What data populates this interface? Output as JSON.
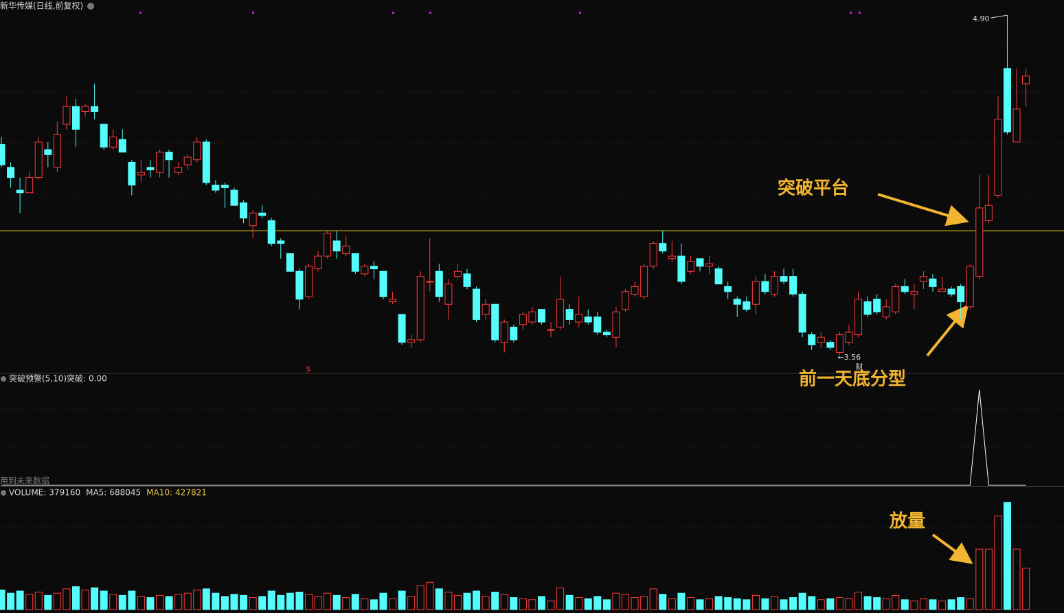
{
  "chart_data": [
    {
      "type": "candlestick",
      "title": "新华传媒(日线,前复权)",
      "ylim": [
        3.49,
        4.96
      ],
      "open": [
        4.39,
        4.3,
        4.21,
        4.2,
        4.26,
        4.37,
        4.3,
        4.47,
        4.54,
        4.52,
        4.54,
        4.47,
        4.38,
        4.41,
        4.32,
        4.27,
        4.3,
        4.28,
        4.36,
        4.28,
        4.31,
        4.33,
        4.4,
        4.23,
        4.23,
        4.21,
        4.16,
        4.07,
        4.12,
        4.09,
        4.01,
        3.96,
        3.89,
        3.79,
        3.9,
        3.95,
        4.01,
        3.96,
        3.96,
        3.88,
        3.91,
        3.89,
        3.77,
        3.72,
        3.61,
        3.62,
        3.85,
        3.89,
        3.76,
        3.87,
        3.88,
        3.82,
        3.72,
        3.76,
        3.61,
        3.67,
        3.68,
        3.69,
        3.74,
        3.66,
        3.67,
        3.74,
        3.69,
        3.71,
        3.71,
        3.65,
        3.63,
        3.74,
        3.8,
        3.79,
        3.91,
        4.0,
        3.94,
        3.95,
        3.89,
        3.94,
        3.91,
        3.9,
        3.83,
        3.78,
        3.77,
        3.76,
        3.85,
        3.8,
        3.87,
        3.87,
        3.8,
        3.64,
        3.61,
        3.61,
        3.57,
        3.61,
        3.64,
        3.77,
        3.78,
        3.71,
        3.73,
        3.83,
        3.8,
        3.85,
        3.86,
        3.81,
        3.82,
        3.83,
        3.75,
        3.87,
        4.09,
        4.19,
        4.69,
        4.4,
        4.63
      ],
      "high": [
        4.42,
        4.32,
        4.26,
        4.28,
        4.42,
        4.4,
        4.48,
        4.58,
        4.57,
        4.55,
        4.63,
        4.47,
        4.45,
        4.45,
        4.33,
        4.33,
        4.33,
        4.37,
        4.37,
        4.32,
        4.35,
        4.42,
        4.41,
        4.25,
        4.24,
        4.22,
        4.17,
        4.13,
        4.15,
        4.1,
        4.02,
        3.96,
        3.9,
        3.92,
        3.97,
        4.05,
        4.05,
        4.03,
        3.96,
        3.92,
        3.93,
        3.89,
        3.81,
        3.72,
        3.64,
        3.89,
        4.02,
        3.92,
        3.86,
        3.92,
        3.9,
        3.83,
        3.78,
        3.76,
        3.7,
        3.68,
        3.73,
        3.75,
        3.74,
        3.69,
        3.87,
        3.76,
        3.79,
        3.74,
        3.73,
        3.66,
        3.75,
        3.82,
        3.85,
        3.92,
        4.01,
        4.05,
        4.01,
        4.0,
        3.95,
        3.94,
        3.95,
        3.91,
        3.85,
        3.79,
        3.79,
        3.87,
        3.88,
        3.89,
        3.9,
        3.9,
        3.81,
        3.65,
        3.65,
        3.62,
        3.65,
        3.68,
        3.81,
        3.79,
        3.8,
        3.78,
        3.84,
        3.86,
        3.84,
        3.89,
        3.88,
        3.87,
        3.83,
        3.84,
        3.92,
        4.27,
        4.27,
        4.58,
        4.9,
        4.69,
        4.69
      ],
      "low": [
        4.3,
        4.22,
        4.12,
        4.2,
        4.25,
        4.3,
        4.28,
        4.45,
        4.38,
        4.5,
        4.49,
        4.37,
        4.37,
        4.36,
        4.19,
        4.24,
        4.26,
        4.26,
        4.26,
        4.27,
        4.29,
        4.32,
        4.23,
        4.2,
        4.14,
        4.15,
        4.08,
        4.02,
        4.1,
        3.99,
        3.94,
        3.89,
        3.74,
        3.78,
        3.89,
        3.94,
        3.94,
        3.95,
        3.88,
        3.87,
        3.86,
        3.78,
        3.76,
        3.6,
        3.59,
        3.61,
        3.81,
        3.77,
        3.7,
        3.86,
        3.82,
        3.69,
        3.7,
        3.61,
        3.57,
        3.61,
        3.66,
        3.68,
        3.68,
        3.63,
        3.66,
        3.68,
        3.67,
        3.68,
        3.64,
        3.63,
        3.59,
        3.73,
        3.79,
        3.78,
        3.9,
        3.96,
        3.93,
        3.84,
        3.88,
        3.89,
        3.88,
        3.84,
        3.78,
        3.71,
        3.73,
        3.72,
        3.8,
        3.79,
        3.84,
        3.79,
        3.63,
        3.58,
        3.59,
        3.58,
        3.56,
        3.6,
        3.63,
        3.71,
        3.72,
        3.7,
        3.72,
        3.8,
        3.74,
        3.82,
        3.81,
        3.81,
        3.79,
        3.7,
        3.74,
        3.86,
        4.08,
        4.18,
        4.43,
        4.4,
        4.54
      ],
      "close": [
        4.31,
        4.26,
        4.2,
        4.26,
        4.4,
        4.35,
        4.43,
        4.54,
        4.45,
        4.54,
        4.52,
        4.38,
        4.42,
        4.36,
        4.23,
        4.28,
        4.29,
        4.36,
        4.33,
        4.3,
        4.34,
        4.4,
        4.24,
        4.21,
        4.22,
        4.15,
        4.1,
        4.12,
        4.11,
        4.0,
        4.0,
        3.89,
        3.78,
        3.91,
        3.95,
        4.04,
        3.97,
        3.99,
        3.89,
        3.91,
        3.9,
        3.79,
        3.78,
        3.61,
        3.62,
        3.87,
        3.85,
        3.79,
        3.84,
        3.89,
        3.83,
        3.7,
        3.76,
        3.62,
        3.69,
        3.62,
        3.72,
        3.73,
        3.69,
        3.66,
        3.78,
        3.7,
        3.72,
        3.69,
        3.65,
        3.64,
        3.73,
        3.81,
        3.83,
        3.91,
        4.0,
        3.97,
        3.95,
        3.85,
        3.93,
        3.91,
        3.92,
        3.84,
        3.81,
        3.76,
        3.74,
        3.85,
        3.81,
        3.87,
        3.85,
        3.8,
        3.65,
        3.6,
        3.63,
        3.59,
        3.64,
        3.65,
        3.78,
        3.72,
        3.73,
        3.75,
        3.83,
        3.81,
        3.81,
        3.87,
        3.83,
        3.82,
        3.8,
        3.77,
        3.91,
        4.14,
        4.15,
        4.49,
        4.44,
        4.53,
        4.66
      ],
      "up_color": "#ff3c3c",
      "down_color": "#54fcfc",
      "level_line": 4.05,
      "level_color": "#e8d000",
      "high_label": {
        "value": 4.9,
        "label": "4.90"
      },
      "low_label": {
        "value": 3.56,
        "label": "←3.56"
      },
      "annotations": [
        "突破平台",
        "前一天底分型"
      ],
      "event_marks": [
        "$",
        "财"
      ]
    },
    {
      "type": "line",
      "title": "突破预警(5,10)",
      "ylim": [
        0,
        1.14
      ],
      "series": [
        {
          "name": "突破:",
          "color": "#ffffff",
          "current": {
            "value": 0,
            "label": "0.00"
          },
          "values": [
            0,
            0,
            0,
            0,
            0,
            0,
            0,
            0,
            0,
            0,
            0,
            0,
            0,
            0,
            0,
            0,
            0,
            0,
            0,
            0,
            0,
            0,
            0,
            0,
            0,
            0,
            0,
            0,
            0,
            0,
            0,
            0,
            0,
            0,
            0,
            0,
            0,
            0,
            0,
            0,
            0,
            0,
            0,
            0,
            0,
            0,
            0,
            0,
            0,
            0,
            0,
            0,
            0,
            0,
            0,
            0,
            0,
            0,
            0,
            0,
            0,
            0,
            0,
            0,
            0,
            0,
            0,
            0,
            0,
            0,
            0,
            0,
            0,
            0,
            0,
            0,
            0,
            0,
            0,
            0,
            0,
            0,
            0,
            0,
            0,
            0,
            0,
            0,
            0,
            0,
            0,
            0,
            0,
            0,
            0,
            0,
            0,
            0,
            0,
            0,
            0,
            0,
            0,
            0,
            0,
            1,
            0,
            0,
            0,
            0,
            0
          ]
        }
      ],
      "note": "用到未来数据"
    },
    {
      "type": "bar",
      "ylim": [
        0,
        1120000
      ],
      "series": [
        {
          "name": "VOLUME:",
          "values": [
            180000,
            150000,
            170000,
            140000,
            160000,
            130000,
            150000,
            190000,
            210000,
            180000,
            200000,
            170000,
            140000,
            130000,
            170000,
            120000,
            110000,
            130000,
            120000,
            140000,
            150000,
            180000,
            190000,
            150000,
            120000,
            140000,
            130000,
            110000,
            120000,
            170000,
            130000,
            150000,
            160000,
            140000,
            120000,
            150000,
            130000,
            110000,
            140000,
            100000,
            90000,
            150000,
            100000,
            170000,
            120000,
            220000,
            250000,
            190000,
            160000,
            130000,
            150000,
            170000,
            120000,
            160000,
            140000,
            110000,
            100000,
            90000,
            120000,
            80000,
            200000,
            130000,
            110000,
            100000,
            120000,
            90000,
            150000,
            140000,
            110000,
            120000,
            190000,
            140000,
            100000,
            150000,
            110000,
            90000,
            100000,
            120000,
            110000,
            100000,
            90000,
            130000,
            100000,
            120000,
            90000,
            110000,
            150000,
            120000,
            90000,
            100000,
            110000,
            100000,
            160000,
            120000,
            110000,
            100000,
            130000,
            90000,
            80000,
            100000,
            90000,
            80000,
            90000,
            110000,
            100000,
            554000,
            554000,
            857000,
            983000,
            554000,
            379160
          ]
        }
      ],
      "legend": [
        {
          "name": "VOLUME:",
          "value": 379160,
          "color": "#d8d8d8"
        },
        {
          "name": "MA5:",
          "value": 688045,
          "color": "#d8d8d8"
        },
        {
          "name": "MA10:",
          "value": 427821,
          "color": "#e6c84a"
        }
      ],
      "annotations": [
        "放量"
      ]
    }
  ]
}
